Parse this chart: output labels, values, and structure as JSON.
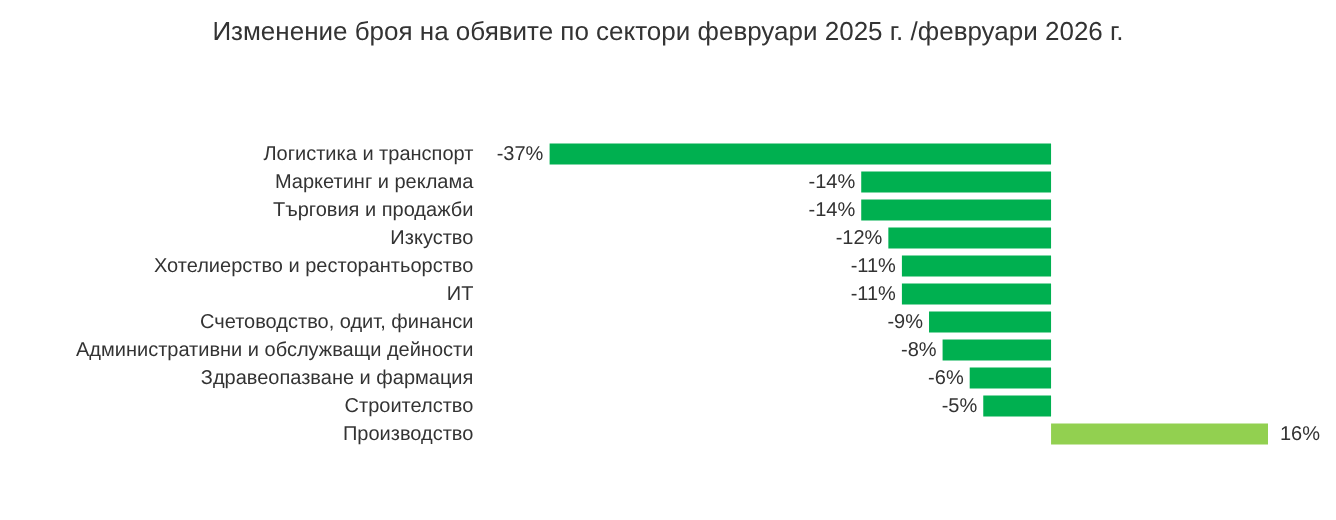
{
  "chart_data": {
    "type": "bar",
    "orientation": "horizontal",
    "title": "Изменение броя на обявите по сектори февруари 2025 г. /февруари 2026 г.",
    "categories": [
      "Логистика и транспорт",
      "Маркетинг и реклама",
      "Търговия и продажби",
      "Изкуство",
      "Хотелиерство и ресторантьорство",
      "ИТ",
      "Счетоводство, одит, финанси",
      "Административни и обслужващи дейности",
      "Здравеопазване и фармация",
      "Строителство",
      "Производство"
    ],
    "values": [
      -37,
      -14,
      -14,
      -12,
      -11,
      -11,
      -9,
      -8,
      -6,
      -5,
      16
    ],
    "colors": [
      "#00b050",
      "#00b050",
      "#00b050",
      "#00b050",
      "#00b050",
      "#00b050",
      "#00b050",
      "#00b050",
      "#00b050",
      "#00b050",
      "#92d050"
    ],
    "value_labels": [
      "-37%",
      "-14%",
      "-14%",
      "-12%",
      "-11%",
      "-11%",
      "-9%",
      "-8%",
      "-6%",
      "-5%",
      "16%"
    ],
    "legend": false
  }
}
